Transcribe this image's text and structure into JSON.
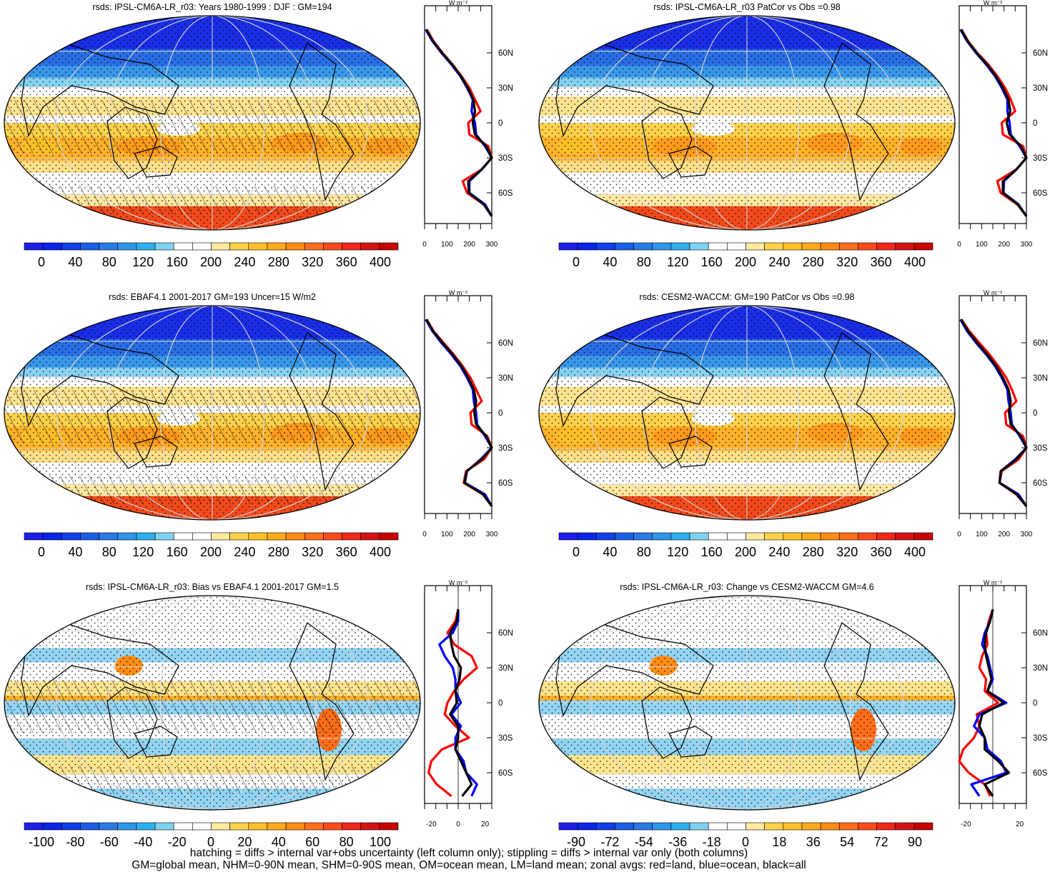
{
  "panels": [
    {
      "title": "rsds: IPSL-CM6A-LR_r03: Years 1980-1999 : DJF : GM=194",
      "kind": "abs",
      "hatch": true,
      "colorbar": {
        "ticks": [
          "0",
          "40",
          "80",
          "120",
          "160",
          "200",
          "240",
          "280",
          "320",
          "360",
          "400"
        ],
        "colors": [
          "#1e1ee6",
          "#0a24ea",
          "#1040e8",
          "#1a5ee6",
          "#2a7ae6",
          "#2e96ea",
          "#2eb0ee",
          "#80d2f2",
          "#ffffff",
          "#ffffff",
          "#ffeaa0",
          "#ffd24c",
          "#ffc02a",
          "#ffaa1a",
          "#ff8c14",
          "#ff6e1a",
          "#ff4a1c",
          "#f2261a",
          "#d21414",
          "#c80000"
        ]
      },
      "profile_xticks": [
        "0",
        "100",
        "200",
        "300"
      ],
      "profile_lat_labels": [
        "60N",
        "30N",
        "0",
        "30S",
        "60S"
      ],
      "profile_unit": "W m⁻²"
    },
    {
      "title": "rsds: IPSL-CM6A-LR_r03 PatCor vs Obs =0.98",
      "kind": "abs",
      "hatch": false,
      "colorbar": {
        "ticks": [
          "0",
          "40",
          "80",
          "120",
          "160",
          "200",
          "240",
          "280",
          "320",
          "360",
          "400"
        ],
        "colors": [
          "#1e1ee6",
          "#0a24ea",
          "#1040e8",
          "#1a5ee6",
          "#2a7ae6",
          "#2e96ea",
          "#2eb0ee",
          "#80d2f2",
          "#ffffff",
          "#ffffff",
          "#ffeaa0",
          "#ffd24c",
          "#ffc02a",
          "#ffaa1a",
          "#ff8c14",
          "#ff6e1a",
          "#ff4a1c",
          "#f2261a",
          "#d21414",
          "#c80000"
        ]
      },
      "profile_xticks": [
        "0",
        "100",
        "200",
        "300"
      ],
      "profile_lat_labels": [
        "60N",
        "30N",
        "0",
        "30S",
        "60S"
      ],
      "profile_unit": "W m⁻²"
    },
    {
      "title": "rsds: EBAF4.1 2001-2017 GM=193 Uncer=15 W/m2",
      "kind": "abs",
      "hatch": true,
      "colorbar": {
        "ticks": [
          "0",
          "40",
          "80",
          "120",
          "160",
          "200",
          "240",
          "280",
          "320",
          "360",
          "400"
        ],
        "colors": [
          "#1e1ee6",
          "#0a24ea",
          "#1040e8",
          "#1a5ee6",
          "#2a7ae6",
          "#2e96ea",
          "#2eb0ee",
          "#80d2f2",
          "#ffffff",
          "#ffffff",
          "#ffeaa0",
          "#ffd24c",
          "#ffc02a",
          "#ffaa1a",
          "#ff8c14",
          "#ff6e1a",
          "#ff4a1c",
          "#f2261a",
          "#d21414",
          "#c80000"
        ]
      },
      "profile_xticks": [
        "0",
        "100",
        "200",
        "300"
      ],
      "profile_lat_labels": [
        "60N",
        "30N",
        "0",
        "30S",
        "60S"
      ],
      "profile_unit": "W m⁻²"
    },
    {
      "title": "rsds: CESM2-WACCM: GM=190 PatCor vs Obs =0.98",
      "kind": "abs",
      "hatch": false,
      "colorbar": {
        "ticks": [
          "0",
          "40",
          "80",
          "120",
          "160",
          "200",
          "240",
          "280",
          "320",
          "360",
          "400"
        ],
        "colors": [
          "#1e1ee6",
          "#0a24ea",
          "#1040e8",
          "#1a5ee6",
          "#2a7ae6",
          "#2e96ea",
          "#2eb0ee",
          "#80d2f2",
          "#ffffff",
          "#ffffff",
          "#ffeaa0",
          "#ffd24c",
          "#ffc02a",
          "#ffaa1a",
          "#ff8c14",
          "#ff6e1a",
          "#ff4a1c",
          "#f2261a",
          "#d21414",
          "#c80000"
        ]
      },
      "profile_xticks": [
        "0",
        "100",
        "200",
        "300"
      ],
      "profile_lat_labels": [
        "60N",
        "30N",
        "0",
        "30S",
        "60S"
      ],
      "profile_unit": "W m⁻²"
    },
    {
      "title": "rsds: IPSL-CM6A-LR_r03: Bias vs EBAF4.1 2001-2017 GM=1.5",
      "kind": "diff",
      "hatch": true,
      "colorbar": {
        "ticks": [
          "-100",
          "-80",
          "-60",
          "-40",
          "-20",
          "0",
          "20",
          "40",
          "60",
          "80",
          "100"
        ],
        "colors": [
          "#1e1ee6",
          "#0a24ea",
          "#1040e8",
          "#1a5ee6",
          "#2a7ae6",
          "#2e96ea",
          "#2eb0ee",
          "#80d2f2",
          "#ffffff",
          "#ffffff",
          "#ffeaa0",
          "#ffd24c",
          "#ffc02a",
          "#ffaa1a",
          "#ff8c14",
          "#ff6e1a",
          "#ff4a1c",
          "#f2261a",
          "#d21414",
          "#c80000"
        ]
      },
      "profile_xticks": [
        "-20",
        "0",
        "20"
      ],
      "profile_lat_labels": [
        "60N",
        "30N",
        "0",
        "30S",
        "60S"
      ],
      "profile_unit": "W m⁻²"
    },
    {
      "title": "rsds: IPSL-CM6A-LR_r03: Change vs CESM2-WACCM GM=4.6",
      "kind": "diff",
      "hatch": false,
      "colorbar": {
        "ticks": [
          "-90",
          "-72",
          "-54",
          "-36",
          "-18",
          "0",
          "18",
          "36",
          "54",
          "72",
          "90"
        ],
        "colors": [
          "#1e1ee6",
          "#0a24ea",
          "#1040e8",
          "#1a5ee6",
          "#2a7ae6",
          "#2e96ea",
          "#2eb0ee",
          "#80d2f2",
          "#ffffff",
          "#ffffff",
          "#ffeaa0",
          "#ffd24c",
          "#ffc02a",
          "#ffaa1a",
          "#ff8c14",
          "#ff6e1a",
          "#ff4a1c",
          "#f2261a",
          "#d21414",
          "#c80000"
        ]
      },
      "profile_xticks": [
        "-20",
        "20"
      ],
      "profile_lat_labels": [
        "60N",
        "30N",
        "0",
        "30S",
        "60S"
      ],
      "profile_unit": "W m⁻²"
    }
  ],
  "footer": {
    "line1": "hatching = diffs > internal var+obs uncertainty (left column only); stippling = diffs > internal var only (both columns)",
    "line2": "GM=global mean, NHM=0-90N mean, SHM=0-90S mean, OM=ocean mean, LM=land mean; zonal avgs: red=land, blue=ocean, black=all"
  },
  "chart_data": [
    {
      "type": "line",
      "title": "rsds: IPSL-CM6A-LR_r03: Years 1980-1999 : DJF : GM=194",
      "xlabel": "W m-2",
      "xlim": [
        0,
        300
      ],
      "lat": [
        80,
        70,
        60,
        50,
        40,
        30,
        20,
        10,
        0,
        -10,
        -20,
        -30,
        -40,
        -50,
        -60,
        -70,
        -80
      ],
      "series": [
        {
          "name": "land",
          "color": "#ff0000",
          "values": [
            10,
            40,
            80,
            125,
            165,
            200,
            225,
            250,
            195,
            200,
            285,
            300,
            255,
            170,
            190,
            265,
            300
          ]
        },
        {
          "name": "ocean",
          "color": "#0000ff",
          "values": [
            5,
            35,
            75,
            120,
            160,
            190,
            215,
            210,
            225,
            230,
            270,
            300,
            255,
            200,
            200,
            270,
            300
          ]
        },
        {
          "name": "all",
          "color": "#000000",
          "values": [
            8,
            38,
            78,
            123,
            162,
            193,
            218,
            225,
            215,
            225,
            275,
            300,
            255,
            195,
            198,
            265,
            300
          ]
        }
      ]
    },
    {
      "type": "line",
      "title": "rsds: IPSL-CM6A-LR_r03 PatCor vs Obs =0.98",
      "xlabel": "W m-2",
      "xlim": [
        0,
        300
      ],
      "lat": [
        80,
        70,
        60,
        50,
        40,
        30,
        20,
        10,
        0,
        -10,
        -20,
        -30,
        -40,
        -50,
        -60,
        -70,
        -80
      ],
      "series": [
        {
          "name": "land",
          "color": "#ff0000",
          "values": [
            10,
            40,
            80,
            130,
            170,
            205,
            230,
            250,
            190,
            195,
            285,
            300,
            255,
            170,
            185,
            260,
            300
          ]
        },
        {
          "name": "ocean",
          "color": "#0000ff",
          "values": [
            5,
            35,
            75,
            120,
            160,
            190,
            215,
            215,
            225,
            230,
            270,
            300,
            255,
            200,
            198,
            265,
            300
          ]
        },
        {
          "name": "all",
          "color": "#000000",
          "values": [
            8,
            38,
            78,
            124,
            164,
            195,
            220,
            228,
            212,
            225,
            275,
            300,
            255,
            195,
            195,
            262,
            300
          ]
        }
      ]
    },
    {
      "type": "line",
      "title": "rsds: EBAF4.1 2001-2017 GM=193 Uncer=15 W/m2",
      "xlabel": "W m-2",
      "xlim": [
        0,
        300
      ],
      "lat": [
        80,
        70,
        60,
        50,
        40,
        30,
        20,
        10,
        0,
        -10,
        -20,
        -30,
        -40,
        -50,
        -60,
        -70,
        -80
      ],
      "series": [
        {
          "name": "land",
          "color": "#ff0000",
          "values": [
            10,
            40,
            85,
            130,
            170,
            205,
            230,
            255,
            205,
            210,
            280,
            300,
            265,
            185,
            175,
            260,
            300
          ]
        },
        {
          "name": "ocean",
          "color": "#0000ff",
          "values": [
            5,
            35,
            75,
            120,
            160,
            190,
            215,
            220,
            230,
            235,
            270,
            300,
            250,
            190,
            180,
            270,
            300
          ]
        },
        {
          "name": "all",
          "color": "#000000",
          "values": [
            8,
            38,
            80,
            125,
            165,
            195,
            220,
            230,
            222,
            230,
            275,
            300,
            255,
            188,
            178,
            262,
            300
          ]
        }
      ]
    },
    {
      "type": "line",
      "title": "rsds: CESM2-WACCM: GM=190 PatCor vs Obs =0.98",
      "xlabel": "W m-2",
      "xlim": [
        0,
        300
      ],
      "lat": [
        80,
        70,
        60,
        50,
        40,
        30,
        20,
        10,
        0,
        -10,
        -20,
        -30,
        -40,
        -50,
        -60,
        -70,
        -80
      ],
      "series": [
        {
          "name": "land",
          "color": "#ff0000",
          "values": [
            10,
            45,
            90,
            135,
            175,
            210,
            235,
            255,
            205,
            210,
            285,
            300,
            265,
            190,
            180,
            255,
            300
          ]
        },
        {
          "name": "ocean",
          "color": "#0000ff",
          "values": [
            5,
            35,
            75,
            120,
            160,
            190,
            215,
            220,
            230,
            235,
            270,
            300,
            250,
            185,
            180,
            265,
            300
          ]
        },
        {
          "name": "all",
          "color": "#000000",
          "values": [
            8,
            40,
            80,
            125,
            165,
            195,
            220,
            230,
            222,
            230,
            275,
            300,
            255,
            186,
            180,
            258,
            300
          ]
        }
      ]
    },
    {
      "type": "line",
      "title": "rsds: IPSL-CM6A-LR_r03: Bias vs EBAF4.1 2001-2017 GM=1.5",
      "xlabel": "W m-2",
      "xlim": [
        -25,
        25
      ],
      "lat": [
        80,
        70,
        60,
        50,
        40,
        30,
        20,
        10,
        0,
        -10,
        -20,
        -30,
        -40,
        -50,
        -60,
        -70,
        -80
      ],
      "series": [
        {
          "name": "land",
          "color": "#ff0000",
          "values": [
            0,
            -2,
            -8,
            -3,
            10,
            14,
            4,
            -3,
            -8,
            -10,
            -2,
            8,
            -12,
            -20,
            -22,
            -16,
            -5
          ]
        },
        {
          "name": "ocean",
          "color": "#0000ff",
          "values": [
            0,
            0,
            -4,
            -14,
            -10,
            -4,
            -2,
            -2,
            2,
            -5,
            2,
            -2,
            -2,
            4,
            6,
            14,
            10
          ]
        },
        {
          "name": "all",
          "color": "#000000",
          "values": [
            0,
            -1,
            -6,
            -5,
            -3,
            2,
            1,
            -2,
            -1,
            -6,
            0,
            0,
            -2,
            2,
            6,
            10,
            3
          ]
        }
      ]
    },
    {
      "type": "line",
      "title": "rsds: IPSL-CM6A-LR_r03: Change vs CESM2-WACCM GM=4.6",
      "xlabel": "W m-2",
      "xlim": [
        -25,
        25
      ],
      "lat": [
        80,
        70,
        60,
        50,
        40,
        30,
        20,
        10,
        0,
        -10,
        -20,
        -30,
        -40,
        -50,
        -60,
        -70,
        -80
      ],
      "series": [
        {
          "name": "land",
          "color": "#ff0000",
          "values": [
            0,
            -3,
            -5,
            -4,
            -8,
            -10,
            -5,
            -6,
            4,
            -12,
            -10,
            -14,
            -22,
            -25,
            -18,
            -6,
            -2
          ]
        },
        {
          "name": "ocean",
          "color": "#0000ff",
          "values": [
            0,
            -2,
            -6,
            -8,
            -4,
            -2,
            0,
            -4,
            10,
            -10,
            -14,
            -6,
            -4,
            6,
            10,
            -16,
            -10
          ]
        },
        {
          "name": "all",
          "color": "#000000",
          "values": [
            0,
            -2,
            -5,
            -6,
            -5,
            -3,
            -1,
            -4,
            8,
            -8,
            -10,
            -6,
            -6,
            4,
            12,
            -6,
            0
          ]
        }
      ]
    }
  ]
}
